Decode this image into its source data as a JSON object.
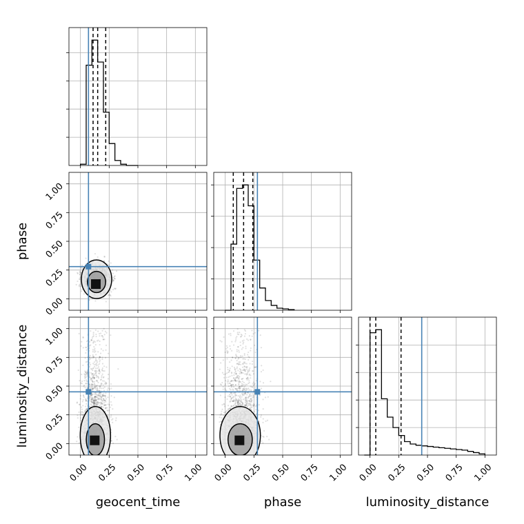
{
  "chart_data": {
    "type": "corner",
    "parameters": [
      "geocent_time",
      "phase",
      "luminosity_distance"
    ],
    "range": [
      -0.1,
      1.1
    ],
    "ticks": [
      0.0,
      0.25,
      0.5,
      0.75,
      1.0
    ],
    "tick_labels": [
      "0.00",
      "0.25",
      "0.50",
      "0.75",
      "1.00"
    ],
    "grid": true,
    "truth_color": "#4682b4",
    "truths": {
      "geocent_time": 0.07,
      "phase": 0.28,
      "luminosity_distance": 0.45
    },
    "quantiles": {
      "geocent_time": [
        0.11,
        0.15,
        0.22
      ],
      "phase": [
        0.07,
        0.16,
        0.24
      ],
      "luminosity_distance": [
        0.0,
        0.05,
        0.27
      ]
    },
    "histograms": {
      "geocent_time": {
        "edges": [
          0.0,
          0.05,
          0.1,
          0.15,
          0.2,
          0.25,
          0.3,
          0.35,
          0.4,
          0.45,
          0.5
        ],
        "counts": [
          2,
          160,
          200,
          165,
          85,
          35,
          8,
          2,
          0,
          0
        ]
      },
      "phase": {
        "edges": [
          0.0,
          0.05,
          0.1,
          0.15,
          0.2,
          0.25,
          0.3,
          0.35,
          0.4,
          0.45,
          0.5,
          0.55,
          0.6
        ],
        "counts": [
          0,
          95,
          175,
          180,
          150,
          72,
          32,
          14,
          7,
          3,
          2,
          1
        ]
      },
      "luminosity_distance": {
        "edges": [
          -0.05,
          0.0,
          0.05,
          0.1,
          0.15,
          0.2,
          0.25,
          0.3,
          0.35,
          0.4,
          0.45,
          0.5,
          0.55,
          0.6,
          0.65,
          0.7,
          0.75,
          0.8,
          0.85,
          0.9,
          0.95,
          1.0
        ],
        "counts": [
          0,
          200,
          205,
          92,
          62,
          45,
          32,
          22,
          18,
          16,
          15,
          14,
          13,
          12,
          11,
          10,
          9,
          8,
          6,
          4,
          2
        ]
      }
    },
    "scatter_2d": {
      "phase_vs_geocent_time": {
        "x_center": 0.14,
        "y_center": 0.17,
        "x_spread": 0.06,
        "y_spread": 0.08
      },
      "luminosity_distance_vs_geocent_time": {
        "x_center": 0.13,
        "y_center": 0.1,
        "x_spread": 0.06,
        "y_spread": 0.3
      },
      "luminosity_distance_vs_phase": {
        "x_center": 0.13,
        "y_center": 0.1,
        "x_spread": 0.08,
        "y_spread": 0.3
      }
    }
  }
}
